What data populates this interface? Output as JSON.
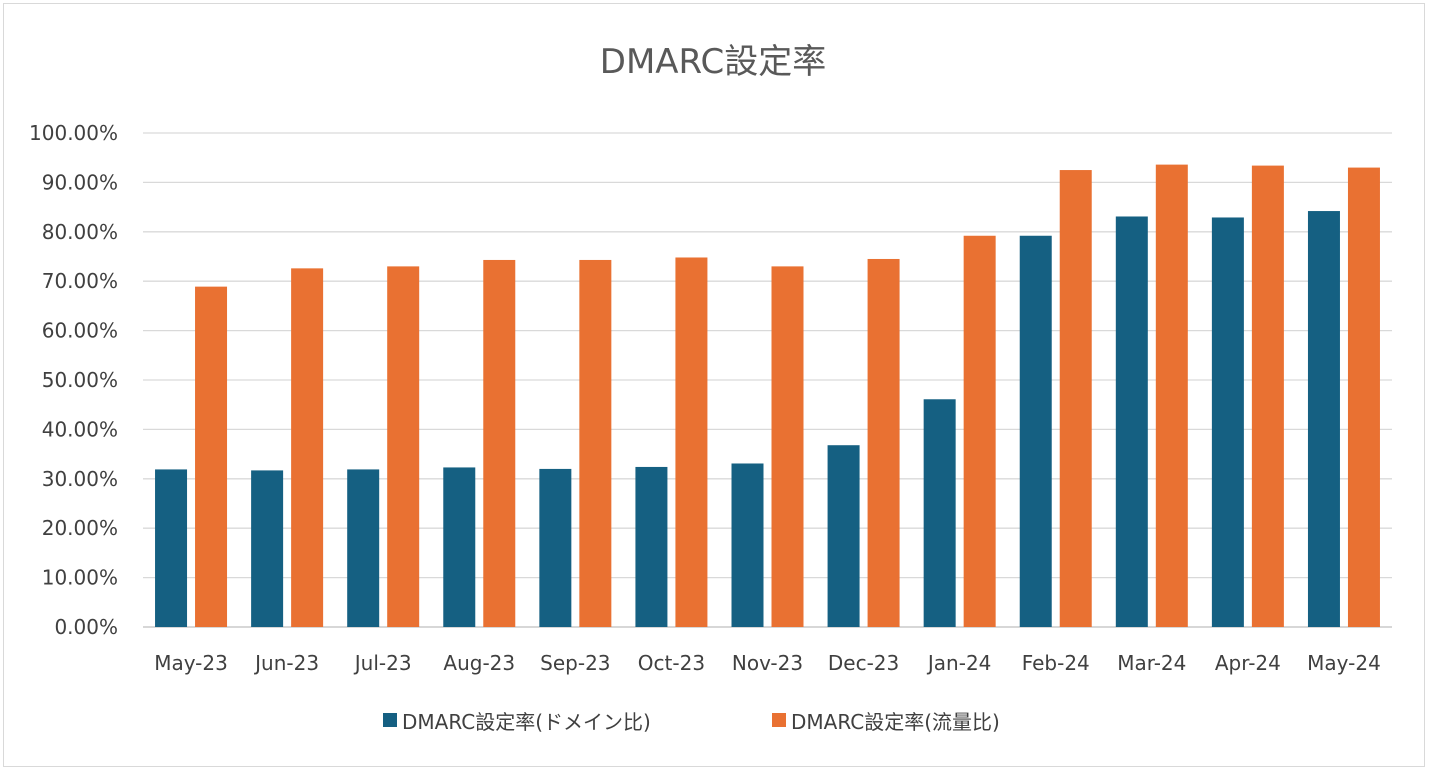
{
  "chart_data": {
    "type": "bar",
    "title": "DMARC設定率",
    "xlabel": "",
    "ylabel": "",
    "ylim": [
      0,
      1
    ],
    "yticks": [
      "0.00%",
      "10.00%",
      "20.00%",
      "30.00%",
      "40.00%",
      "50.00%",
      "60.00%",
      "70.00%",
      "80.00%",
      "90.00%",
      "100.00%"
    ],
    "ytick_values": [
      0,
      0.1,
      0.2,
      0.3,
      0.4,
      0.5,
      0.6,
      0.7,
      0.8,
      0.9,
      1.0
    ],
    "grid": true,
    "legend_position": "bottom",
    "categories": [
      "May-23",
      "Jun-23",
      "Jul-23",
      "Aug-23",
      "Sep-23",
      "Oct-23",
      "Nov-23",
      "Dec-23",
      "Jan-24",
      "Feb-24",
      "Mar-24",
      "Apr-24",
      "May-24"
    ],
    "series": [
      {
        "name": "DMARC設定率(ドメイン比)",
        "color": "#156082",
        "values": [
          0.319,
          0.317,
          0.319,
          0.323,
          0.32,
          0.324,
          0.331,
          0.368,
          0.461,
          0.792,
          0.831,
          0.829,
          0.842
        ]
      },
      {
        "name": "DMARC設定率(流量比)",
        "color": "#E97132",
        "values": [
          0.689,
          0.726,
          0.73,
          0.743,
          0.743,
          0.748,
          0.73,
          0.745,
          0.792,
          0.925,
          0.936,
          0.934,
          0.93
        ]
      }
    ]
  }
}
